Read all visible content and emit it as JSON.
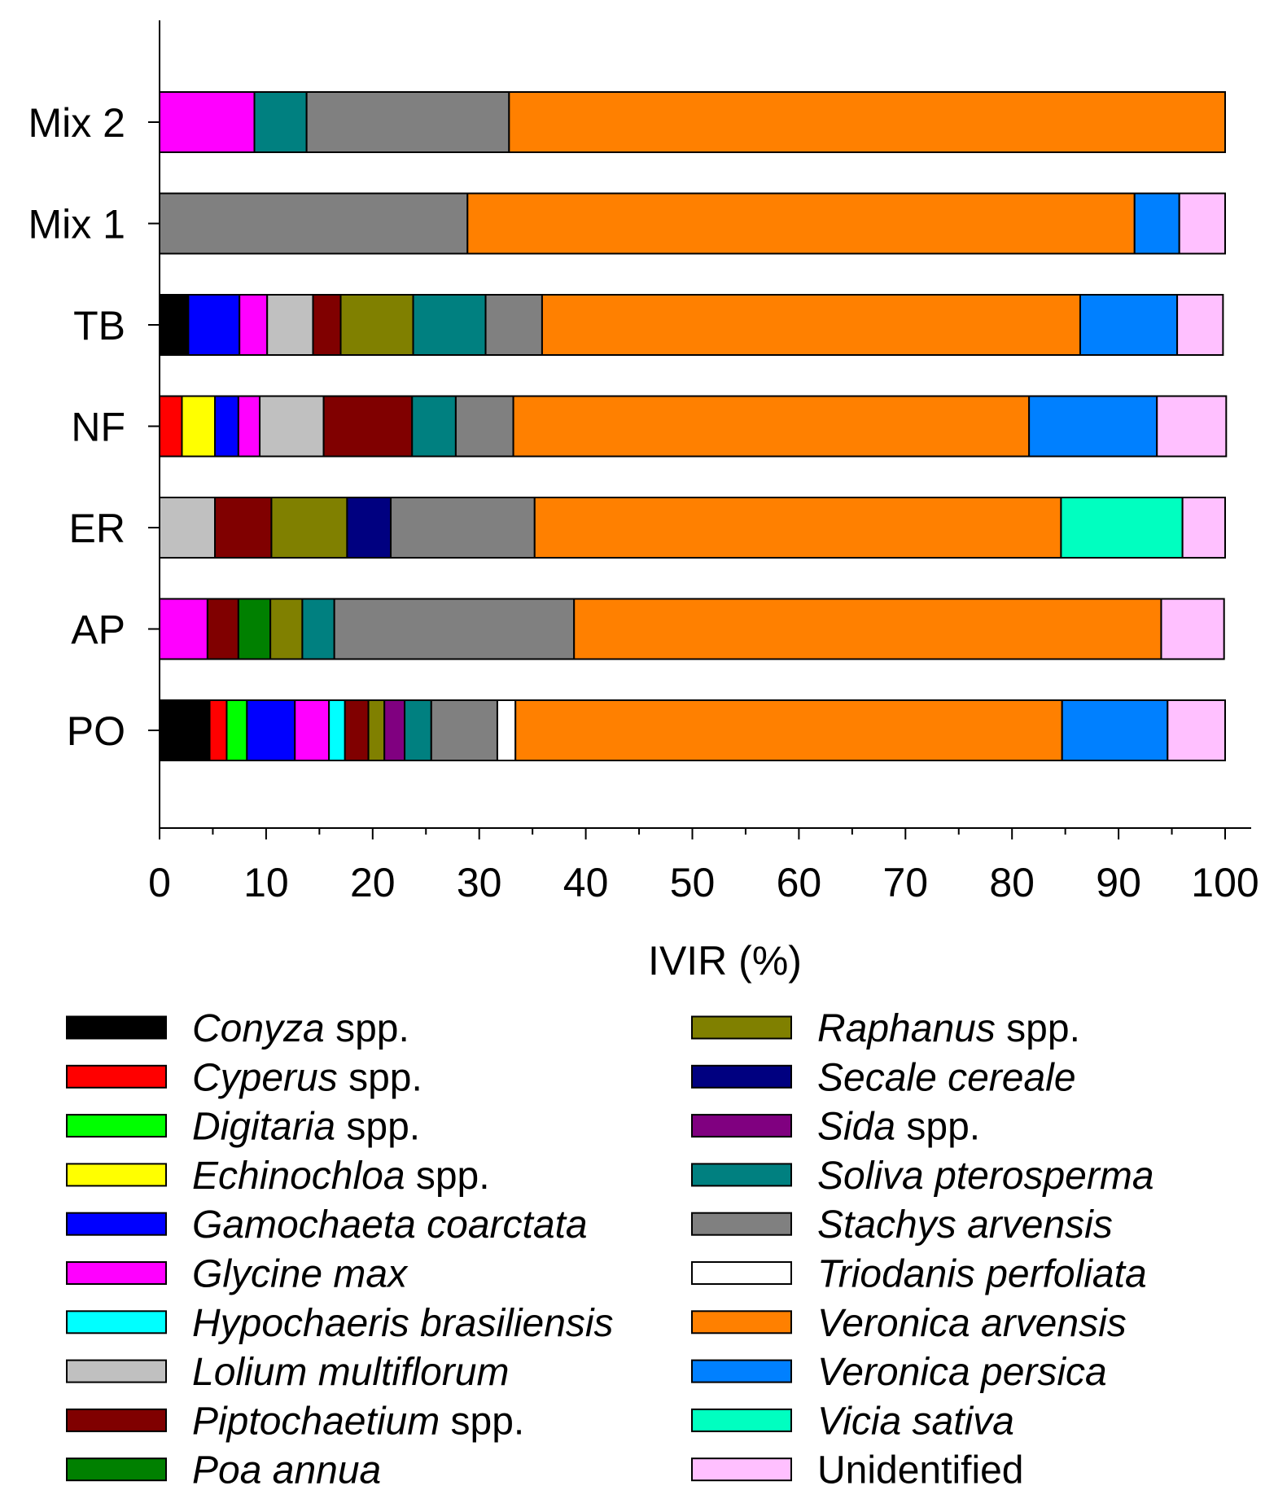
{
  "chart_data": {
    "type": "bar",
    "orientation": "horizontal",
    "stacked": true,
    "title": "",
    "xlabel": "IVIR (%)",
    "ylabel": "",
    "xlim": [
      0,
      100
    ],
    "xticks": [
      0,
      10,
      20,
      30,
      40,
      50,
      60,
      70,
      80,
      90,
      100
    ],
    "grid": false,
    "legend_placement": "bottom",
    "categories": [
      "Mix 2",
      "Mix 1",
      "TB",
      "NF",
      "ER",
      "AP",
      "PO"
    ],
    "species": [
      {
        "key": "conyza",
        "name": "Conyza",
        "suffix": " spp.",
        "color": "#000000"
      },
      {
        "key": "cyperus",
        "name": "Cyperus",
        "suffix": " spp.",
        "color": "#ff0000"
      },
      {
        "key": "digitaria",
        "name": "Digitaria",
        "suffix": " spp.",
        "color": "#00ff00"
      },
      {
        "key": "echinochloa",
        "name": "Echinochloa",
        "suffix": " spp.",
        "color": "#ffff00"
      },
      {
        "key": "gamochaeta",
        "name": "Gamochaeta coarctata",
        "suffix": "",
        "color": "#0000ff"
      },
      {
        "key": "glycine",
        "name": "Glycine max",
        "suffix": "",
        "color": "#ff00ff"
      },
      {
        "key": "hypochaeris",
        "name": "Hypochaeris brasiliensis",
        "suffix": "",
        "color": "#00ffff"
      },
      {
        "key": "lolium",
        "name": "Lolium multiflorum",
        "suffix": "",
        "color": "#c0c0c0"
      },
      {
        "key": "piptochaetium",
        "name": "Piptochaetium",
        "suffix": " spp.",
        "color": "#800000"
      },
      {
        "key": "poa",
        "name": "Poa annua",
        "suffix": "",
        "color": "#008000"
      },
      {
        "key": "raphanus",
        "name": "Raphanus",
        "suffix": " spp.",
        "color": "#808000"
      },
      {
        "key": "secale",
        "name": "Secale cereale",
        "suffix": "",
        "color": "#000080"
      },
      {
        "key": "sida",
        "name": "Sida",
        "suffix": " spp.",
        "color": "#800080"
      },
      {
        "key": "soliva",
        "name": "Soliva pterosperma",
        "suffix": "",
        "color": "#008080"
      },
      {
        "key": "stachys",
        "name": "Stachys arvensis",
        "suffix": "",
        "color": "#808080"
      },
      {
        "key": "triodanis",
        "name": "Triodanis perfoliata",
        "suffix": "",
        "color": "#ffffff"
      },
      {
        "key": "varvensis",
        "name": "Veronica arvensis",
        "suffix": "",
        "color": "#ff8000"
      },
      {
        "key": "vpersica",
        "name": "Veronica persica",
        "suffix": "",
        "color": "#0080ff"
      },
      {
        "key": "vicia",
        "name": "Vicia sativa",
        "suffix": "",
        "color": "#00ffc0"
      },
      {
        "key": "unidentified",
        "name": "",
        "suffix": "Unidentified",
        "color": "#ffc0ff"
      }
    ],
    "series": [
      {
        "name": "Conyza spp.",
        "values": [
          0,
          0,
          2.7,
          0,
          0,
          0,
          4.7
        ]
      },
      {
        "name": "Cyperus spp.",
        "values": [
          0,
          0,
          0,
          2.1,
          0,
          0,
          1.6
        ]
      },
      {
        "name": "Digitaria spp.",
        "values": [
          0,
          0,
          0,
          0,
          0,
          0,
          1.9
        ]
      },
      {
        "name": "Echinochloa spp.",
        "values": [
          0,
          0,
          0,
          3.1,
          0,
          0,
          0
        ]
      },
      {
        "name": "Gamochaeta coarctata",
        "values": [
          0,
          0,
          4.8,
          2.2,
          0,
          0,
          4.5
        ]
      },
      {
        "name": "Glycine max",
        "values": [
          8.9,
          0,
          2.6,
          2.0,
          0,
          4.5,
          3.2
        ]
      },
      {
        "name": "Hypochaeris brasiliensis",
        "values": [
          0,
          0,
          0,
          0,
          0,
          0,
          1.5
        ]
      },
      {
        "name": "Lolium multiflorum",
        "values": [
          0,
          0,
          4.3,
          6.0,
          5.2,
          0,
          0
        ]
      },
      {
        "name": "Piptochaetium spp.",
        "values": [
          0,
          0,
          2.6,
          8.3,
          5.3,
          2.9,
          2.2
        ]
      },
      {
        "name": "Poa annua",
        "values": [
          0,
          0,
          0,
          0,
          0,
          3.0,
          0
        ]
      },
      {
        "name": "Raphanus spp.",
        "values": [
          0,
          0,
          6.8,
          0,
          7.1,
          3.0,
          1.5
        ]
      },
      {
        "name": "Secale cereale",
        "values": [
          0,
          0,
          0,
          0,
          4.1,
          0,
          0
        ]
      },
      {
        "name": "Sida spp.",
        "values": [
          0,
          0,
          0,
          0,
          0,
          0,
          1.9
        ]
      },
      {
        "name": "Soliva pterosperma",
        "values": [
          4.9,
          0,
          6.8,
          4.1,
          0,
          3.0,
          2.5
        ]
      },
      {
        "name": "Stachys arvensis",
        "values": [
          19.0,
          28.9,
          5.3,
          5.4,
          13.5,
          22.5,
          6.2
        ]
      },
      {
        "name": "Triodanis perfoliata",
        "values": [
          0,
          0,
          0,
          0,
          0,
          0,
          1.7
        ]
      },
      {
        "name": "Veronica arvensis",
        "values": [
          67.2,
          62.6,
          50.5,
          48.4,
          49.4,
          55.1,
          51.3
        ]
      },
      {
        "name": "Veronica persica",
        "values": [
          0,
          4.2,
          9.1,
          12.0,
          0,
          0,
          9.9
        ]
      },
      {
        "name": "Vicia sativa",
        "values": [
          0,
          0,
          0,
          0,
          11.4,
          0,
          0
        ]
      },
      {
        "name": "Unidentified",
        "values": [
          0,
          4.3,
          4.3,
          6.5,
          4.0,
          5.9,
          5.4
        ]
      }
    ]
  }
}
